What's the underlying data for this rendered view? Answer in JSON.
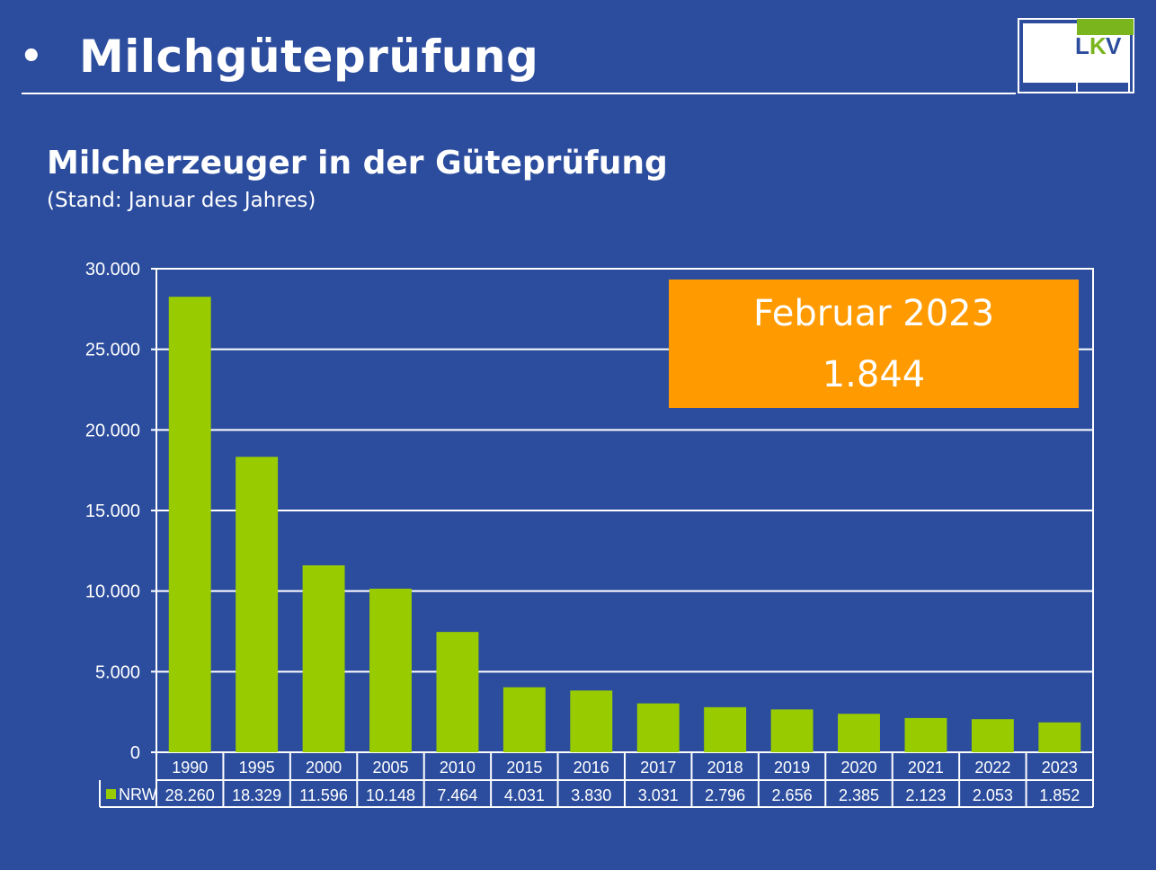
{
  "header": {
    "bullet": "•",
    "title": "Milchgüteprüfung",
    "logo_text_l": "L",
    "logo_text_k": "K",
    "logo_text_v": "V"
  },
  "subtitle": "Milcherzeuger in der Güteprüfung",
  "subnote": "(Stand: Januar des Jahres)",
  "callout": {
    "title": "Februar 2023",
    "value": "1.844"
  },
  "colors": {
    "background": "#2c4d9d",
    "bar": "#99cc00",
    "callout": "#ff9a00",
    "logo_green": "#7ab51d",
    "logo_blue": "#2c4d9d"
  },
  "chart_data": {
    "type": "bar",
    "categories": [
      "1990",
      "1995",
      "2000",
      "2005",
      "2010",
      "2015",
      "2016",
      "2017",
      "2018",
      "2019",
      "2020",
      "2021",
      "2022",
      "2023"
    ],
    "series": [
      {
        "name": "NRW",
        "values": [
          28260,
          18329,
          11596,
          10148,
          7464,
          4031,
          3830,
          3031,
          2796,
          2656,
          2385,
          2123,
          2053,
          1852
        ],
        "labels": [
          "28.260",
          "18.329",
          "11.596",
          "10.148",
          "7.464",
          "4.031",
          "3.830",
          "3.031",
          "2.796",
          "2.656",
          "2.385",
          "2.123",
          "2.053",
          "1.852"
        ]
      }
    ],
    "ylim": [
      0,
      30000
    ],
    "yticks": [
      0,
      5000,
      10000,
      15000,
      20000,
      25000,
      30000
    ],
    "ytick_labels": [
      "0",
      "5.000",
      "10.000",
      "15.000",
      "20.000",
      "25.000",
      "30.000"
    ],
    "grid": true,
    "legend": "data-table-left",
    "xlabel": "",
    "ylabel": ""
  }
}
